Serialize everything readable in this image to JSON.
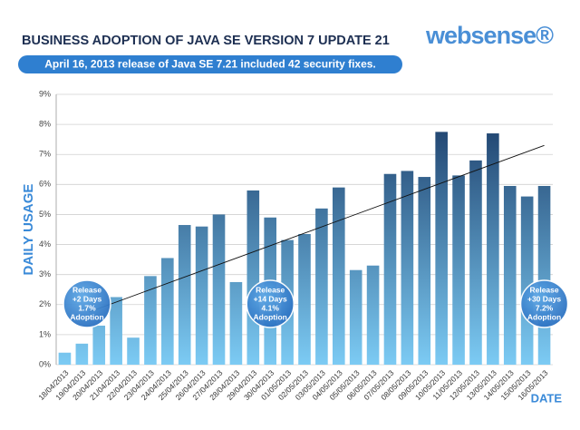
{
  "logo": "websense®",
  "chart_data": {
    "type": "bar",
    "title": "BUSINESS ADOPTION OF JAVA SE VERSION 7 UPDATE 21",
    "subtitle": "April 16, 2013 release of Java SE 7.21 included 42 security fixes.",
    "y_label": "DAILY USAGE",
    "x_label": "DATE",
    "categories": [
      "18/04/2013",
      "19/04/2013",
      "20/04/2013",
      "21/04/2013",
      "22/04/2013",
      "23/04/2013",
      "24/04/2013",
      "25/04/2013",
      "26/04/2013",
      "27/04/2013",
      "28/04/2013",
      "29/04/2013",
      "30/04/2013",
      "01/05/2013",
      "02/05/2013",
      "03/05/2013",
      "04/05/2013",
      "05/05/2013",
      "06/05/2013",
      "07/05/2013",
      "08/05/2013",
      "09/05/2013",
      "10/05/2013",
      "11/05/2013",
      "12/05/2013",
      "13/05/2013",
      "14/05/2013",
      "15/05/2013",
      "16/05/2013"
    ],
    "values": [
      0.4,
      0.7,
      1.3,
      2.25,
      0.9,
      2.95,
      3.55,
      4.65,
      4.6,
      5.0,
      2.75,
      5.8,
      4.9,
      4.15,
      4.35,
      5.2,
      5.9,
      3.15,
      3.3,
      6.35,
      6.45,
      6.25,
      7.75,
      6.3,
      6.8,
      7.7,
      5.95,
      5.6,
      5.95
    ],
    "gradient": [
      "#15335f",
      "#7ccbf4"
    ],
    "ylim": [
      0,
      9
    ],
    "yticks": [
      {
        "value": 0,
        "label": "0%"
      },
      {
        "value": 1,
        "label": "1%"
      },
      {
        "value": 2,
        "label": "2%"
      },
      {
        "value": 3,
        "label": "3%"
      },
      {
        "value": 4,
        "label": "4%"
      },
      {
        "value": 5,
        "label": "5%"
      },
      {
        "value": 6,
        "label": "6%"
      },
      {
        "value": 7,
        "label": "7%"
      },
      {
        "value": 8,
        "label": "8%"
      },
      {
        "value": 9,
        "label": "9%"
      }
    ],
    "grid": true,
    "trend": {
      "from": "20/04/2013",
      "to": "16/05/2013",
      "values": [
        1.75,
        7.3
      ]
    },
    "annotations": [
      {
        "at": "19/04/2013",
        "lines": [
          "Release",
          "+2 Days",
          "1.7%",
          "Adoption"
        ]
      },
      {
        "at": "30/04/2013",
        "lines": [
          "Release",
          "+14 Days",
          "4.1%",
          "Adoption"
        ]
      },
      {
        "at": "16/05/2013",
        "lines": [
          "Release",
          "+30 Days",
          "7.2%",
          "Adoption"
        ]
      }
    ]
  }
}
